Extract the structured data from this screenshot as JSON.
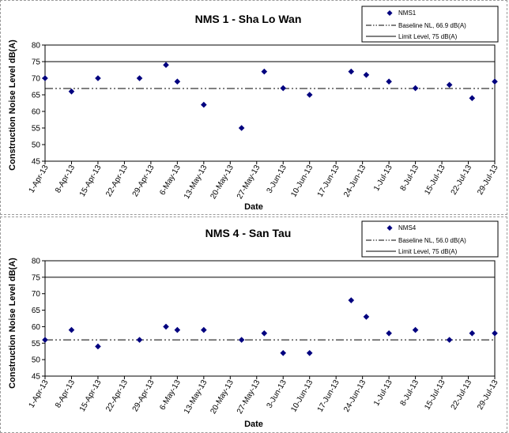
{
  "chart_data": [
    {
      "type": "scatter",
      "title": "NMS 1 - Sha Lo Wan",
      "xlabel": "Date",
      "ylabel": "Construction Noise Level  dB(A)",
      "ylim": [
        45,
        80
      ],
      "yticks": [
        45,
        50,
        55,
        60,
        65,
        70,
        75,
        80
      ],
      "xlim": [
        "2013-04-01",
        "2013-07-29"
      ],
      "x_tick_labels": [
        "1-Apr-13",
        "8-Apr-13",
        "15-Apr-13",
        "22-Apr-13",
        "29-Apr-13",
        "6-May-13",
        "13-May-13",
        "20-May-13",
        "27-May-13",
        "3-Jun-13",
        "10-Jun-13",
        "17-Jun-13",
        "24-Jun-13",
        "1-Jul-13",
        "8-Jul-13",
        "15-Jul-13",
        "22-Jul-13",
        "29-Jul-13"
      ],
      "x_tick_dates": [
        "2013-04-01",
        "2013-04-08",
        "2013-04-15",
        "2013-04-22",
        "2013-04-29",
        "2013-05-06",
        "2013-05-13",
        "2013-05-20",
        "2013-05-27",
        "2013-06-03",
        "2013-06-10",
        "2013-06-17",
        "2013-06-24",
        "2013-07-01",
        "2013-07-08",
        "2013-07-15",
        "2013-07-22",
        "2013-07-29"
      ],
      "series": [
        {
          "name": "NMS1",
          "marker": "diamond",
          "color": "#00007f",
          "x": [
            "2013-04-01",
            "2013-04-08",
            "2013-04-15",
            "2013-04-26",
            "2013-05-03",
            "2013-05-06",
            "2013-05-13",
            "2013-05-23",
            "2013-05-29",
            "2013-06-03",
            "2013-06-10",
            "2013-06-21",
            "2013-06-25",
            "2013-07-01",
            "2013-07-08",
            "2013-07-17",
            "2013-07-23",
            "2013-07-29"
          ],
          "y": [
            70,
            66,
            70,
            70,
            74,
            69,
            62,
            55,
            72,
            67,
            65,
            72,
            71,
            69,
            67,
            68,
            64,
            69
          ]
        }
      ],
      "lines": [
        {
          "name": "Baseline NL, 66.9 dB(A)",
          "value": 66.9,
          "style": "dash-dot-dot",
          "color": "#000000"
        },
        {
          "name": "Limit Level, 75 dB(A)",
          "value": 75,
          "style": "solid",
          "color": "#000000"
        }
      ],
      "legend": "top-right"
    },
    {
      "type": "scatter",
      "title": "NMS 4 - San Tau",
      "xlabel": "Date",
      "ylabel": "Construction Noise Level  dB(A)",
      "ylim": [
        45,
        80
      ],
      "yticks": [
        45,
        50,
        55,
        60,
        65,
        70,
        75,
        80
      ],
      "xlim": [
        "2013-04-01",
        "2013-07-29"
      ],
      "x_tick_labels": [
        "1-Apr-13",
        "8-Apr-13",
        "15-Apr-13",
        "22-Apr-13",
        "29-Apr-13",
        "6-May-13",
        "13-May-13",
        "20-May-13",
        "27-May-13",
        "3-Jun-13",
        "10-Jun-13",
        "17-Jun-13",
        "24-Jun-13",
        "1-Jul-13",
        "8-Jul-13",
        "15-Jul-13",
        "22-Jul-13",
        "29-Jul-13"
      ],
      "x_tick_dates": [
        "2013-04-01",
        "2013-04-08",
        "2013-04-15",
        "2013-04-22",
        "2013-04-29",
        "2013-05-06",
        "2013-05-13",
        "2013-05-20",
        "2013-05-27",
        "2013-06-03",
        "2013-06-10",
        "2013-06-17",
        "2013-06-24",
        "2013-07-01",
        "2013-07-08",
        "2013-07-15",
        "2013-07-22",
        "2013-07-29"
      ],
      "series": [
        {
          "name": "NMS4",
          "marker": "diamond",
          "color": "#00007f",
          "x": [
            "2013-04-01",
            "2013-04-08",
            "2013-04-15",
            "2013-04-26",
            "2013-05-03",
            "2013-05-06",
            "2013-05-13",
            "2013-05-23",
            "2013-05-29",
            "2013-06-03",
            "2013-06-10",
            "2013-06-21",
            "2013-06-25",
            "2013-07-01",
            "2013-07-08",
            "2013-07-17",
            "2013-07-23",
            "2013-07-29"
          ],
          "y": [
            56,
            59,
            54,
            56,
            60,
            59,
            59,
            56,
            58,
            52,
            52,
            68,
            63,
            58,
            59,
            56,
            58,
            58
          ]
        }
      ],
      "lines": [
        {
          "name": "Baseline NL, 56.0 dB(A)",
          "value": 56.0,
          "style": "dash-dot-dot",
          "color": "#000000"
        },
        {
          "name": "Limit Level, 75 dB(A)",
          "value": 75,
          "style": "solid",
          "color": "#000000"
        }
      ],
      "legend": "top-right"
    }
  ]
}
